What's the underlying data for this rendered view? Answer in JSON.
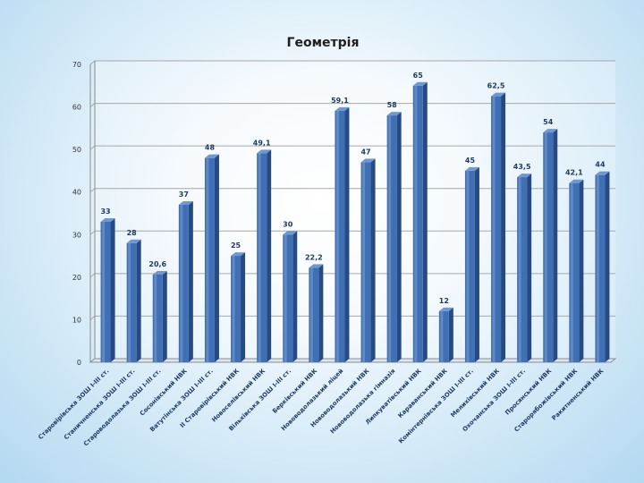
{
  "chart_data": {
    "type": "bar",
    "title": "Геометрія",
    "categories": [
      "Старовірівська ЗОШ І-ІІІ ст.",
      "Станичненська ЗОШ І-ІІІ ст.",
      "Староводолазька ЗОШ І-ІІІ ст.",
      "Сосонівський НВК",
      "Ватутінська ЗОШ І-ІІІ ст.",
      "ІІ Старовірівський НВК",
      "Новоселівський НВК",
      "Вільхівська ЗОШ І-ІІІ ст.",
      "Берківський НВК",
      "Нововодолазький ліцей",
      "Нововодолазький НВК",
      "Нововодолазька гімназія",
      "Липкуватівський НВК",
      "Караванський НВК",
      "Комінтернівська ЗОШ І-ІІІ ст.",
      "Мелихівський НВК",
      "Охочанська ЗОШ І-ІІІ ст.",
      "Просянський НВК",
      "Старорябожівський НВК",
      "Ракитненський НВК"
    ],
    "values": [
      33,
      28,
      20.6,
      37,
      48,
      25,
      49.1,
      30,
      22.2,
      59.1,
      47,
      58,
      65,
      12,
      45,
      62.5,
      43.5,
      54,
      42.1,
      44
    ],
    "value_labels": [
      "33",
      "28",
      "20,6",
      "37",
      "48",
      "25",
      "49,1",
      "30",
      "22,2",
      "59,1",
      "47",
      "58",
      "65",
      "12",
      "45",
      "62,5",
      "43,5",
      "54",
      "42,1",
      "44"
    ],
    "yticks": [
      "0",
      "10",
      "20",
      "30",
      "40",
      "50",
      "60",
      "70"
    ],
    "ylim": [
      0,
      70
    ],
    "grid": true,
    "legend": "none",
    "bar_color": "#3f6fb5",
    "bar_shadow_color": "#274a82",
    "gridline_color": "#a8a8a8"
  }
}
